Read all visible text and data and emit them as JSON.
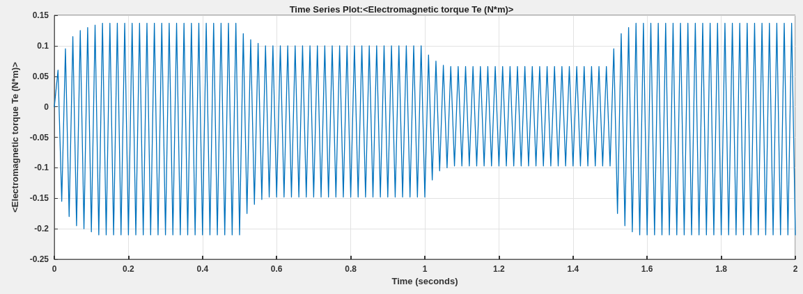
{
  "chart_data": {
    "type": "line",
    "title": "Time Series Plot:<Electromagnetic torque Te (N*m)>",
    "xlabel": "Time (seconds)",
    "ylabel": "<Electromagnetic torque Te (N*m)>",
    "xlim": [
      0,
      2
    ],
    "xticks": [
      0,
      0.2,
      0.4,
      0.6,
      0.8,
      1,
      1.2,
      1.4,
      1.6,
      1.8,
      2
    ],
    "ylim": [
      -0.25,
      0.15
    ],
    "yticks": [
      -0.25,
      -0.2,
      -0.15,
      -0.1,
      -0.05,
      0,
      0.05,
      0.1,
      0.15
    ],
    "grid": true,
    "marker": "none",
    "line_style": "solid",
    "series": [
      {
        "color": "#0072bd",
        "x": [
          0,
          0.01,
          0.02,
          0.03,
          0.04,
          0.05,
          0.06,
          0.07,
          0.08,
          0.09,
          0.1,
          0.11,
          0.12,
          0.13,
          0.14,
          0.15,
          0.16,
          0.17,
          0.18,
          0.19,
          0.2,
          0.21,
          0.22,
          0.23,
          0.24,
          0.25,
          0.26,
          0.27,
          0.28,
          0.29,
          0.3,
          0.31,
          0.32,
          0.33,
          0.34,
          0.35,
          0.36,
          0.37,
          0.38,
          0.39,
          0.4,
          0.41,
          0.42,
          0.43,
          0.44,
          0.45,
          0.46,
          0.47,
          0.48,
          0.49,
          0.5,
          0.51,
          0.52,
          0.53,
          0.54,
          0.55,
          0.56,
          0.57,
          0.58,
          0.59,
          0.6,
          0.61,
          0.62,
          0.63,
          0.64,
          0.65,
          0.66,
          0.67,
          0.68,
          0.69,
          0.7,
          0.71,
          0.72,
          0.73,
          0.74,
          0.75,
          0.76,
          0.77,
          0.78,
          0.79,
          0.8,
          0.81,
          0.82,
          0.83,
          0.84,
          0.85,
          0.86,
          0.87,
          0.88,
          0.89,
          0.9,
          0.91,
          0.92,
          0.93,
          0.94,
          0.95,
          0.96,
          0.97,
          0.98,
          0.99,
          1,
          1.01,
          1.02,
          1.03,
          1.04,
          1.05,
          1.06,
          1.07,
          1.08,
          1.09,
          1.1,
          1.11,
          1.12,
          1.13,
          1.14,
          1.15,
          1.16,
          1.17,
          1.18,
          1.19,
          1.2,
          1.21,
          1.22,
          1.23,
          1.24,
          1.25,
          1.26,
          1.27,
          1.28,
          1.29,
          1.3,
          1.31,
          1.32,
          1.33,
          1.34,
          1.35,
          1.36,
          1.37,
          1.38,
          1.39,
          1.4,
          1.41,
          1.42,
          1.43,
          1.44,
          1.45,
          1.46,
          1.47,
          1.48,
          1.49,
          1.5,
          1.51,
          1.52,
          1.53,
          1.54,
          1.55,
          1.56,
          1.57,
          1.58,
          1.59,
          1.6,
          1.61,
          1.62,
          1.63,
          1.64,
          1.65,
          1.66,
          1.67,
          1.68,
          1.69,
          1.7,
          1.71,
          1.72,
          1.73,
          1.74,
          1.75,
          1.76,
          1.77,
          1.78,
          1.79,
          1.8,
          1.81,
          1.82,
          1.83,
          1.84,
          1.85,
          1.86,
          1.87,
          1.88,
          1.89,
          1.9,
          1.91,
          1.92,
          1.93,
          1.94,
          1.95,
          1.96,
          1.97,
          1.98,
          1.99,
          2
        ],
        "values": [
          0,
          0.06,
          -0.155,
          0.095,
          -0.18,
          0.115,
          -0.195,
          0.125,
          -0.2,
          0.13,
          -0.205,
          0.134,
          -0.21,
          0.137,
          -0.21,
          0.137,
          -0.21,
          0.137,
          -0.21,
          0.137,
          -0.21,
          0.137,
          -0.21,
          0.137,
          -0.21,
          0.137,
          -0.21,
          0.137,
          -0.21,
          0.137,
          -0.21,
          0.137,
          -0.21,
          0.137,
          -0.21,
          0.137,
          -0.21,
          0.137,
          -0.21,
          0.137,
          -0.21,
          0.137,
          -0.21,
          0.137,
          -0.21,
          0.137,
          -0.21,
          0.137,
          -0.21,
          0.137,
          -0.21,
          0.12,
          -0.175,
          0.11,
          -0.16,
          0.104,
          -0.152,
          0.1,
          -0.148,
          0.1,
          -0.148,
          0.1,
          -0.148,
          0.1,
          -0.148,
          0.1,
          -0.148,
          0.1,
          -0.148,
          0.1,
          -0.148,
          0.1,
          -0.148,
          0.1,
          -0.148,
          0.1,
          -0.148,
          0.1,
          -0.148,
          0.1,
          -0.148,
          0.1,
          -0.148,
          0.1,
          -0.148,
          0.1,
          -0.148,
          0.1,
          -0.148,
          0.1,
          -0.148,
          0.1,
          -0.148,
          0.1,
          -0.148,
          0.1,
          -0.148,
          0.1,
          -0.148,
          0.1,
          -0.148,
          0.085,
          -0.12,
          0.075,
          -0.105,
          0.068,
          -0.1,
          0.066,
          -0.097,
          0.066,
          -0.097,
          0.066,
          -0.097,
          0.066,
          -0.097,
          0.066,
          -0.097,
          0.066,
          -0.097,
          0.066,
          -0.097,
          0.066,
          -0.097,
          0.066,
          -0.097,
          0.066,
          -0.097,
          0.066,
          -0.097,
          0.066,
          -0.097,
          0.066,
          -0.097,
          0.066,
          -0.097,
          0.066,
          -0.097,
          0.066,
          -0.097,
          0.066,
          -0.097,
          0.066,
          -0.097,
          0.066,
          -0.097,
          0.066,
          -0.097,
          0.066,
          -0.097,
          0.066,
          -0.097,
          0.095,
          -0.175,
          0.12,
          -0.195,
          0.13,
          -0.205,
          0.137,
          -0.21,
          0.137,
          -0.21,
          0.137,
          -0.21,
          0.137,
          -0.21,
          0.137,
          -0.21,
          0.137,
          -0.21,
          0.137,
          -0.21,
          0.137,
          -0.21,
          0.137,
          -0.21,
          0.137,
          -0.21,
          0.137,
          -0.21,
          0.137,
          -0.21,
          0.137,
          -0.21,
          0.137,
          -0.21,
          0.137,
          -0.21,
          0.137,
          -0.21,
          0.137,
          -0.21,
          0.137,
          -0.21,
          0.137,
          -0.21,
          0.137,
          -0.21,
          0.137,
          -0.21,
          0.137,
          -0.21
        ]
      }
    ]
  }
}
